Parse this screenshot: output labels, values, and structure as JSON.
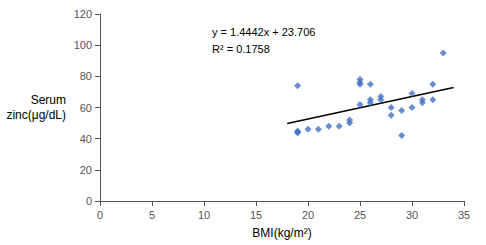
{
  "chart_data": {
    "type": "scatter",
    "xlabel": "BMI(kg/m²)",
    "ylabel": "Serum\nzinc(μg/dL)",
    "annotations": [
      "y = 1.4442x + 23.706",
      "R² = 0.1758"
    ],
    "series": [
      {
        "type": "scatter",
        "marker": "diamond",
        "color": "#4472C4",
        "x": [
          19,
          19,
          19,
          19,
          20,
          21,
          22,
          23,
          24,
          24,
          25,
          25,
          25,
          25,
          26,
          26,
          26,
          27,
          27,
          28,
          28,
          29,
          29,
          30,
          30,
          31,
          31,
          32,
          32,
          33
        ],
        "values": [
          44,
          44,
          45,
          74,
          46,
          46,
          48,
          48,
          50,
          52,
          62,
          75,
          76,
          78,
          65,
          63,
          75,
          65,
          67,
          55,
          60,
          58,
          42,
          60,
          69,
          63,
          65,
          65,
          75,
          95
        ]
      },
      {
        "type": "line",
        "color": "#000000",
        "x": [
          18.0,
          34.0
        ],
        "values": [
          49.7016,
          72.8088
        ]
      }
    ],
    "xlim": [
      0,
      35
    ],
    "ylim": [
      0,
      120
    ],
    "xticks": [
      0,
      5,
      10,
      15,
      20,
      25,
      30,
      35
    ],
    "yticks": [
      0,
      20,
      40,
      60,
      80,
      100,
      120
    ],
    "grid": false
  }
}
